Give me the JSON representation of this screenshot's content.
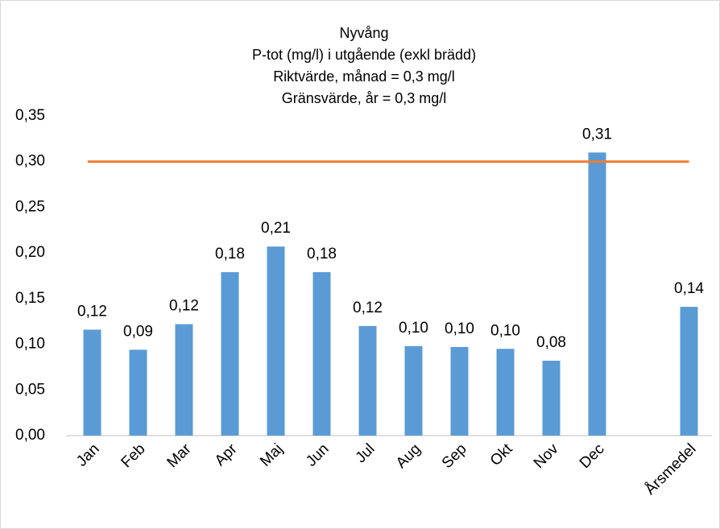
{
  "chart_data": {
    "type": "bar",
    "title": [
      "Nyvång",
      "P-tot (mg/l) i utgående (exkl brädd)",
      "Riktvärde, månad = 0,3 mg/l",
      "Gränsvärde, år = 0,3 mg/l"
    ],
    "categories": [
      "Jan",
      "Feb",
      "Mar",
      "Apr",
      "Maj",
      "Jun",
      "Jul",
      "Aug",
      "Sep",
      "Okt",
      "Nov",
      "Dec",
      null,
      "Årsmedel"
    ],
    "values": [
      0.116,
      0.094,
      0.122,
      0.179,
      0.207,
      0.179,
      0.12,
      0.098,
      0.097,
      0.095,
      0.082,
      0.31,
      null,
      0.141
    ],
    "value_labels": [
      "0,12",
      "0,09",
      "0,12",
      "0,18",
      "0,21",
      "0,18",
      "0,12",
      "0,10",
      "0,10",
      "0,10",
      "0,08",
      "0,31",
      null,
      "0,14"
    ],
    "color": "#5b9bd5",
    "reference_line": {
      "value": 0.3,
      "color": "#ed7d31"
    },
    "ylim": [
      0,
      0.35
    ],
    "yticks": [
      {
        "value": 0,
        "label": "0,00"
      },
      {
        "value": 0.05,
        "label": "0,05"
      },
      {
        "value": 0.1,
        "label": "0,10"
      },
      {
        "value": 0.15,
        "label": "0,15"
      },
      {
        "value": 0.2,
        "label": "0,20"
      },
      {
        "value": 0.25,
        "label": "0,25"
      },
      {
        "value": 0.3,
        "label": "0,30"
      },
      {
        "value": 0.35,
        "label": "0,35"
      }
    ],
    "grid": false
  }
}
